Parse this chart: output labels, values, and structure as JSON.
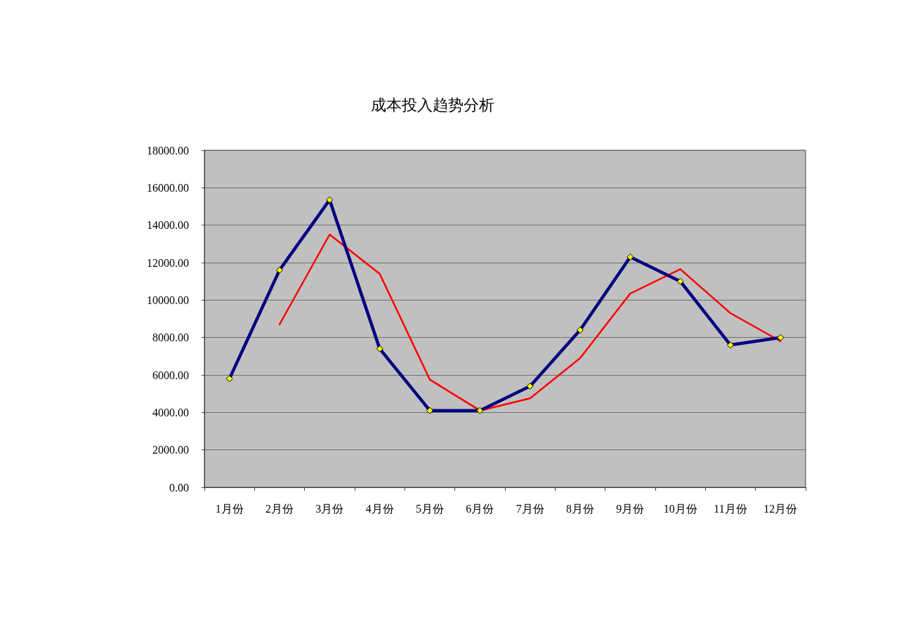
{
  "chart_data": {
    "type": "line",
    "title": "成本投入趋势分析",
    "categories": [
      "1月份",
      "2月份",
      "3月份",
      "4月份",
      "5月份",
      "6月份",
      "7月份",
      "8月份",
      "9月份",
      "10月份",
      "11月份",
      "12月份"
    ],
    "series": [
      {
        "color": "#000080",
        "marker": "diamond",
        "values": [
          5800,
          11600,
          15350,
          7400,
          4100,
          4100,
          5400,
          8400,
          12300,
          11000,
          7600,
          8000
        ]
      },
      {
        "color": "#ff0000",
        "marker": "none",
        "values": [
          null,
          8700,
          13500,
          11400,
          5750,
          4100,
          4750,
          6900,
          10350,
          11650,
          9300,
          7800
        ]
      }
    ],
    "ylim": [
      0,
      18000
    ],
    "yticks": [
      {
        "value": 0,
        "label": "0.00"
      },
      {
        "value": 2000,
        "label": "2000.00"
      },
      {
        "value": 4000,
        "label": "4000.00"
      },
      {
        "value": 6000,
        "label": "6000.00"
      },
      {
        "value": 8000,
        "label": "8000.00"
      },
      {
        "value": 10000,
        "label": "10000.00"
      },
      {
        "value": 12000,
        "label": "12000.00"
      },
      {
        "value": 14000,
        "label": "14000.00"
      },
      {
        "value": 16000,
        "label": "16000.00"
      },
      {
        "value": 18000,
        "label": "18000.00"
      }
    ],
    "grid": "y"
  }
}
